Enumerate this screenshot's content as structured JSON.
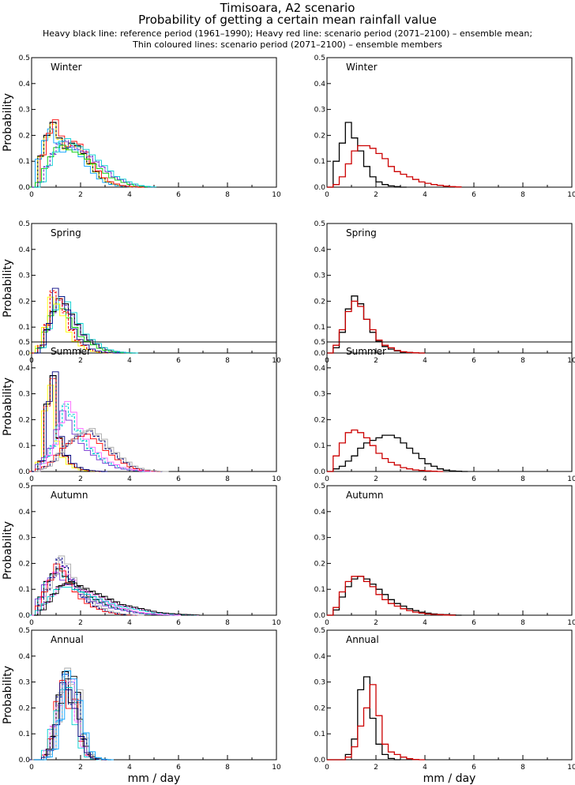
{
  "title": {
    "line1": "Timisoara, A2 scenario",
    "line2": "Probability of getting a certain mean rainfall value",
    "line3": "Heavy black line: reference period (1961–1990); Heavy red line: scenario period (2071–2100) – ensemble mean;",
    "line4": "Thin coloured lines: scenario period (2071–2100) – ensemble members"
  },
  "ylabel": "Probability",
  "xlabel": "mm / day",
  "colors": {
    "reference": "#000000",
    "scenario_mean": "#cc0000",
    "members": [
      "#00a0ff",
      "#00cc00",
      "#ffff00",
      "#7030d0",
      "#ff0000",
      "#00d0d0",
      "#000080",
      "#ff66ff",
      "#aaaaaa",
      "#000000"
    ]
  },
  "chart_data": [
    {
      "type": "line",
      "panel": "Winter-members",
      "label": "Winter",
      "xlim": [
        0,
        10
      ],
      "ylim": [
        0,
        0.5
      ],
      "bin_width": 0.25,
      "bin_start": 0.0,
      "series": [
        {
          "values": [
            0.0,
            0.12,
            0.2,
            0.25,
            0.19,
            0.15,
            0.17,
            0.16,
            0.13,
            0.09,
            0.06,
            0.035,
            0.02,
            0.012,
            0.006,
            0.003,
            0.001,
            0.0
          ]
        },
        {
          "values": [
            0.0,
            0.02,
            0.08,
            0.13,
            0.17,
            0.18,
            0.16,
            0.15,
            0.14,
            0.12,
            0.1,
            0.08,
            0.06,
            0.04,
            0.03,
            0.02,
            0.012,
            0.006,
            0.003,
            0.001
          ]
        }
      ]
    },
    {
      "type": "line",
      "panel": "Winter-means",
      "label": "Winter",
      "xlim": [
        0,
        10
      ],
      "ylim": [
        0,
        0.5
      ],
      "bin_width": 0.25,
      "bin_start": 0.0,
      "series": [
        {
          "values": [
            0.0,
            0.1,
            0.17,
            0.25,
            0.19,
            0.14,
            0.08,
            0.04,
            0.02,
            0.01,
            0.005,
            0.002,
            0.0
          ]
        },
        {
          "values": [
            0.0,
            0.01,
            0.04,
            0.09,
            0.14,
            0.16,
            0.16,
            0.15,
            0.13,
            0.11,
            0.08,
            0.06,
            0.05,
            0.04,
            0.03,
            0.02,
            0.015,
            0.01,
            0.007,
            0.004,
            0.002,
            0.001
          ]
        }
      ]
    },
    {
      "type": "line",
      "panel": "Spring-members",
      "label": "Spring",
      "xlim": [
        0,
        10
      ],
      "ylim": [
        0,
        0.5
      ],
      "bin_width": 0.25,
      "bin_start": 0.0,
      "series": [
        {
          "values": [
            0.0,
            0.02,
            0.09,
            0.16,
            0.21,
            0.19,
            0.15,
            0.11,
            0.07,
            0.05,
            0.035,
            0.02,
            0.012,
            0.006,
            0.003,
            0.001,
            0.0
          ]
        },
        {
          "values": [
            0.0,
            0.03,
            0.11,
            0.24,
            0.21,
            0.16,
            0.09,
            0.05,
            0.03,
            0.015,
            0.007,
            0.003,
            0.001,
            0.0
          ]
        }
      ]
    },
    {
      "type": "line",
      "panel": "Spring-means",
      "label": "Spring",
      "xlim": [
        0,
        10
      ],
      "ylim": [
        0,
        0.5
      ],
      "bin_width": 0.25,
      "bin_start": 0.0,
      "series": [
        {
          "values": [
            0.0,
            0.02,
            0.08,
            0.17,
            0.22,
            0.19,
            0.13,
            0.08,
            0.045,
            0.025,
            0.015,
            0.008,
            0.004,
            0.002,
            0.001,
            0.0
          ]
        },
        {
          "values": [
            0.0,
            0.03,
            0.09,
            0.16,
            0.2,
            0.18,
            0.13,
            0.09,
            0.05,
            0.03,
            0.02,
            0.01,
            0.005,
            0.002,
            0.001,
            0.0
          ]
        }
      ]
    },
    {
      "type": "line",
      "panel": "Summer-members",
      "label": "Summer",
      "xlim": [
        0,
        10
      ],
      "ylim": [
        0,
        0.5
      ],
      "bin_width": 0.25,
      "bin_start": 0.0,
      "series": [
        {
          "values": [
            0.0,
            0.04,
            0.26,
            0.37,
            0.13,
            0.06,
            0.03,
            0.015,
            0.007,
            0.003,
            0.001,
            0.0
          ]
        },
        {
          "values": [
            0.0,
            0.03,
            0.06,
            0.1,
            0.18,
            0.26,
            0.22,
            0.16,
            0.12,
            0.09,
            0.07,
            0.05,
            0.035,
            0.025,
            0.015,
            0.01,
            0.006,
            0.003,
            0.001,
            0.0
          ]
        },
        {
          "values": [
            0.0,
            0.01,
            0.02,
            0.04,
            0.07,
            0.1,
            0.12,
            0.14,
            0.15,
            0.16,
            0.14,
            0.12,
            0.09,
            0.07,
            0.05,
            0.035,
            0.02,
            0.012,
            0.006,
            0.003,
            0.001,
            0.0
          ]
        }
      ]
    },
    {
      "type": "line",
      "panel": "Summer-means",
      "label": "Summer",
      "xlim": [
        0,
        10
      ],
      "ylim": [
        0,
        0.5
      ],
      "bin_width": 0.25,
      "bin_start": 0.0,
      "series": [
        {
          "values": [
            0.0,
            0.01,
            0.02,
            0.04,
            0.06,
            0.09,
            0.11,
            0.12,
            0.13,
            0.14,
            0.14,
            0.13,
            0.11,
            0.09,
            0.07,
            0.05,
            0.03,
            0.02,
            0.01,
            0.005,
            0.002,
            0.001,
            0.0
          ]
        },
        {
          "values": [
            0.0,
            0.06,
            0.11,
            0.15,
            0.16,
            0.15,
            0.13,
            0.1,
            0.07,
            0.05,
            0.035,
            0.025,
            0.015,
            0.01,
            0.006,
            0.004,
            0.002,
            0.001,
            0.0
          ]
        }
      ]
    },
    {
      "type": "line",
      "panel": "Autumn-members",
      "label": "Autumn",
      "xlim": [
        0,
        10
      ],
      "ylim": [
        0,
        0.5
      ],
      "bin_width": 0.25,
      "bin_start": 0.0,
      "series": [
        {
          "values": [
            0.0,
            0.07,
            0.13,
            0.16,
            0.18,
            0.15,
            0.13,
            0.11,
            0.09,
            0.07,
            0.06,
            0.05,
            0.04,
            0.03,
            0.025,
            0.02,
            0.015,
            0.01,
            0.007,
            0.005,
            0.003,
            0.002,
            0.001,
            0.0
          ]
        },
        {
          "values": [
            0.0,
            0.04,
            0.1,
            0.15,
            0.22,
            0.19,
            0.14,
            0.1,
            0.07,
            0.05,
            0.035,
            0.025,
            0.015,
            0.01,
            0.005,
            0.003,
            0.001,
            0.0
          ]
        },
        {
          "values": [
            0.0,
            0.02,
            0.05,
            0.08,
            0.11,
            0.12,
            0.12,
            0.11,
            0.1,
            0.09,
            0.08,
            0.07,
            0.06,
            0.05,
            0.04,
            0.035,
            0.03,
            0.025,
            0.02,
            0.015,
            0.01,
            0.008,
            0.006,
            0.004,
            0.003,
            0.002,
            0.001,
            0.0
          ]
        }
      ]
    },
    {
      "type": "line",
      "panel": "Autumn-means",
      "label": "Autumn",
      "xlim": [
        0,
        10
      ],
      "ylim": [
        0,
        0.5
      ],
      "bin_width": 0.25,
      "bin_start": 0.0,
      "series": [
        {
          "values": [
            0.0,
            0.02,
            0.07,
            0.11,
            0.14,
            0.15,
            0.14,
            0.12,
            0.1,
            0.08,
            0.06,
            0.045,
            0.035,
            0.025,
            0.018,
            0.012,
            0.008,
            0.005,
            0.003,
            0.002,
            0.001,
            0.0
          ]
        },
        {
          "values": [
            0.0,
            0.03,
            0.09,
            0.13,
            0.15,
            0.15,
            0.13,
            0.11,
            0.08,
            0.06,
            0.045,
            0.035,
            0.025,
            0.018,
            0.012,
            0.008,
            0.005,
            0.003,
            0.002,
            0.001,
            0.0
          ]
        }
      ]
    },
    {
      "type": "line",
      "panel": "Annual-members",
      "label": "Annual",
      "xlim": [
        0,
        10
      ],
      "ylim": [
        0,
        0.5
      ],
      "bin_width": 0.25,
      "bin_start": 0.0,
      "series": [
        {
          "values": [
            0.0,
            0.0,
            0.02,
            0.09,
            0.25,
            0.34,
            0.22,
            0.26,
            0.08,
            0.02,
            0.004,
            0.001,
            0.0
          ]
        },
        {
          "values": [
            0.0,
            0.0,
            0.04,
            0.13,
            0.21,
            0.3,
            0.31,
            0.15,
            0.05,
            0.012,
            0.003,
            0.0
          ]
        },
        {
          "values": [
            0.0,
            0.0,
            0.01,
            0.04,
            0.15,
            0.33,
            0.3,
            0.22,
            0.1,
            0.03,
            0.008,
            0.002,
            0.0
          ]
        }
      ]
    },
    {
      "type": "line",
      "panel": "Annual-means",
      "label": "Annual",
      "xlim": [
        0,
        10
      ],
      "ylim": [
        0,
        0.5
      ],
      "bin_width": 0.25,
      "bin_start": 0.0,
      "series": [
        {
          "values": [
            0.0,
            0.0,
            0.0,
            0.02,
            0.08,
            0.27,
            0.32,
            0.16,
            0.06,
            0.02,
            0.005,
            0.0
          ]
        },
        {
          "values": [
            0.0,
            0.0,
            0.0,
            0.01,
            0.05,
            0.13,
            0.2,
            0.29,
            0.17,
            0.06,
            0.03,
            0.02,
            0.01,
            0.004,
            0.001,
            0.0
          ]
        }
      ]
    }
  ]
}
